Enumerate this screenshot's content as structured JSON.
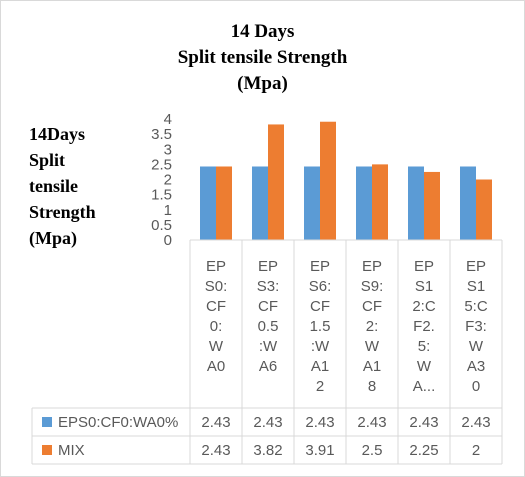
{
  "chart_data": {
    "type": "bar",
    "title_lines": [
      "14 Days",
      "Split tensile Strength",
      "(Mpa)"
    ],
    "ylabel_lines": [
      "14Days",
      "Split",
      "tensile",
      "Strength",
      "(Mpa)"
    ],
    "xlabel": "",
    "ylim": [
      0,
      4
    ],
    "yticks": [
      "0",
      "0.5",
      "1",
      "1.5",
      "2",
      "2.5",
      "3",
      "3.5",
      "4"
    ],
    "categories": [
      "EPS0:CF0:WA0",
      "EPS3:CF0.5:WA6",
      "EPS6:CF1.5:WA12",
      "EPS9:CF2:WA18",
      "EPS12:CF2.5:WA...",
      "EPS15:CF3:WA30"
    ],
    "category_lines": [
      [
        "EP",
        "S0:",
        "CF",
        "0:",
        "W",
        "A0"
      ],
      [
        "EP",
        "S3:",
        "CF",
        "0.5",
        ":W",
        "A6"
      ],
      [
        "EP",
        "S6:",
        "CF",
        "1.5",
        ":W",
        "A1",
        "2"
      ],
      [
        "EP",
        "S9:",
        "CF",
        "2:",
        "W",
        "A1",
        "8"
      ],
      [
        "EP",
        "S1",
        "2:C",
        "F2.",
        "5:",
        "W",
        "A..."
      ],
      [
        "EP",
        "S1",
        "5:C",
        "F3:",
        "W",
        "A3",
        "0"
      ]
    ],
    "series": [
      {
        "name": "EPS0:CF0:WA0%",
        "color": "#5b9bd5",
        "values": [
          2.43,
          2.43,
          2.43,
          2.43,
          2.43,
          2.43
        ],
        "labels": [
          "2.43",
          "2.43",
          "2.43",
          "2.43",
          "2.43",
          "2.43"
        ]
      },
      {
        "name": "MIX",
        "color": "#ed7d31",
        "values": [
          2.43,
          3.82,
          3.91,
          2.5,
          2.25,
          2
        ],
        "labels": [
          "2.43",
          "3.82",
          "3.91",
          "2.5",
          "2.25",
          "2"
        ]
      }
    ],
    "grid": false,
    "legend": "data-table"
  }
}
